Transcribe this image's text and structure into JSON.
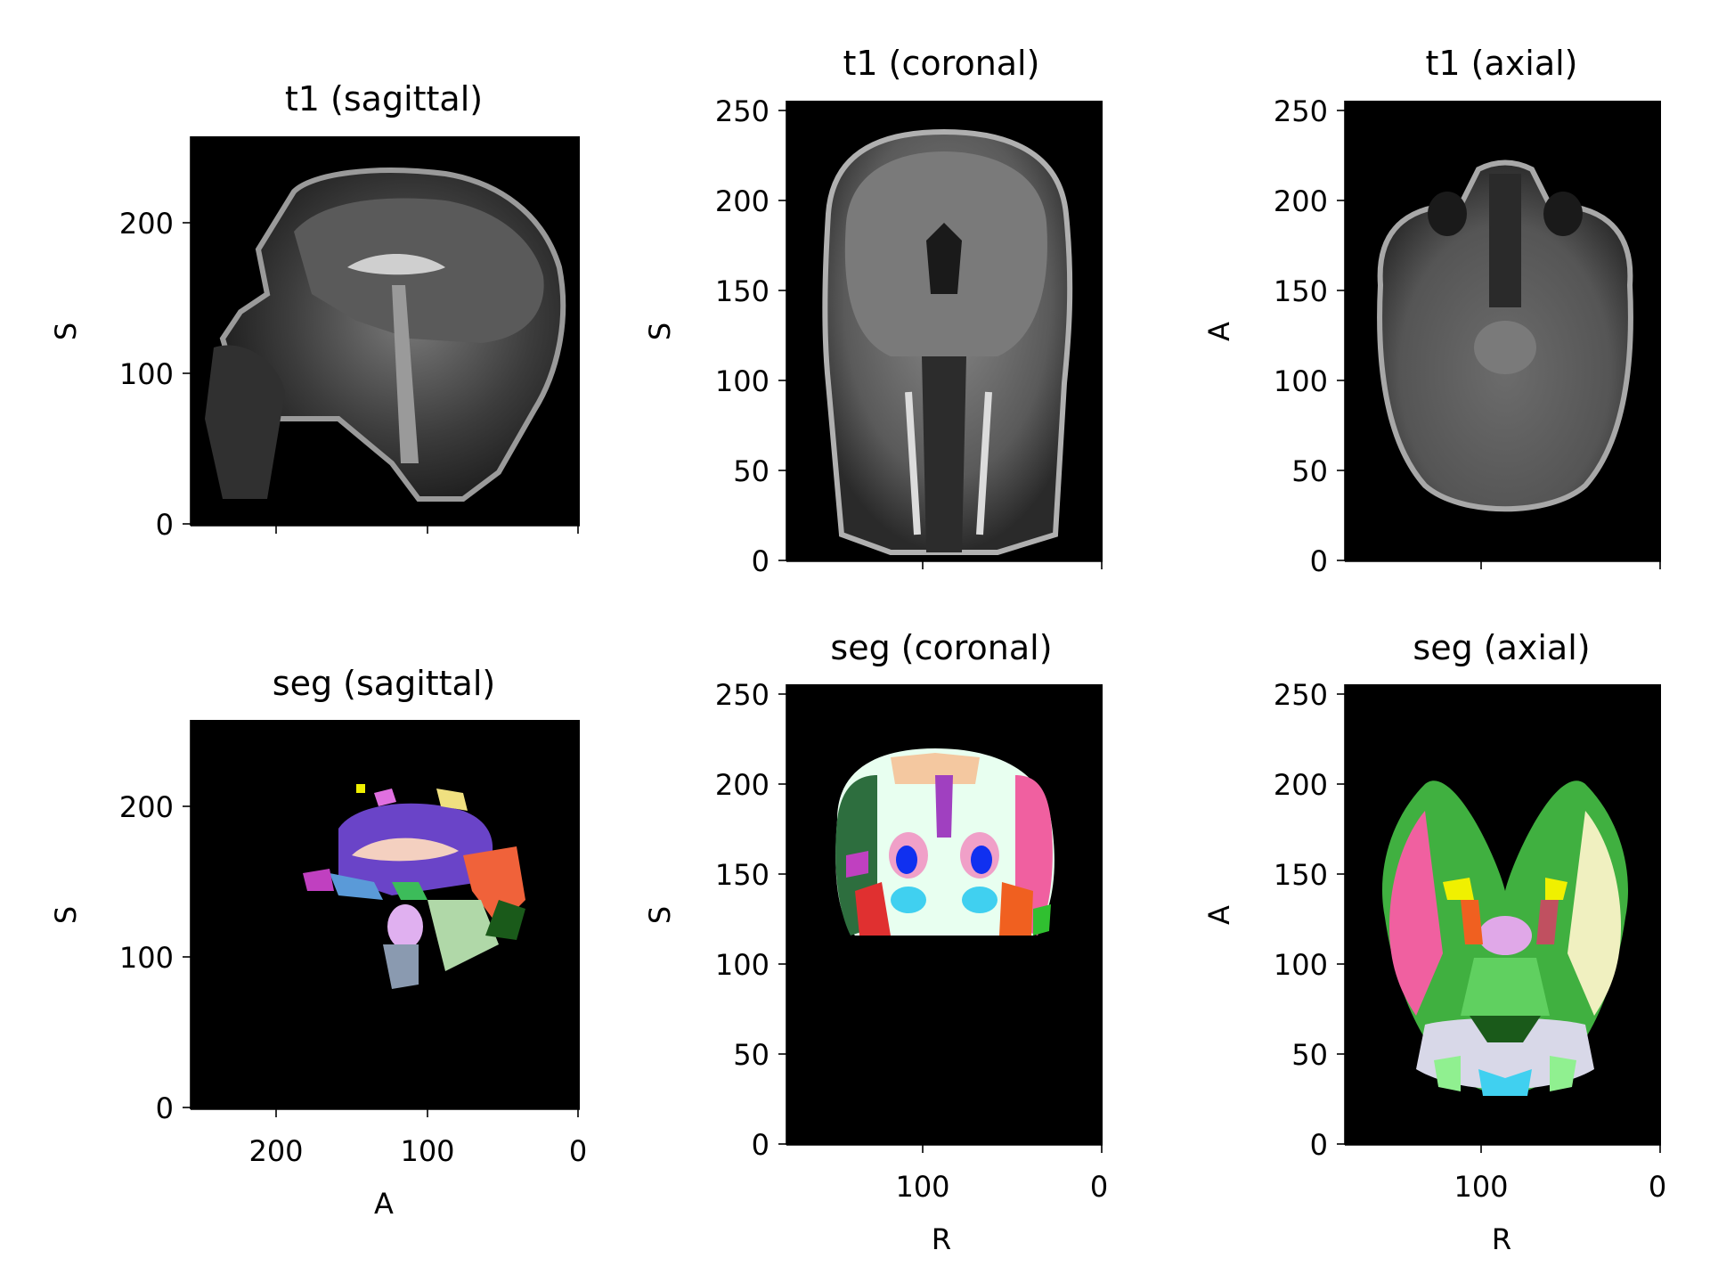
{
  "chart_data": [
    {
      "type": "image",
      "title": "t1 (sagittal)",
      "xlabel": "",
      "ylabel": "S",
      "xlim": [
        256,
        0
      ],
      "ylim": [
        0,
        256
      ],
      "xticks": [
        200,
        100,
        0
      ],
      "xticklabels": [
        "",
        "",
        ""
      ],
      "yticks": [
        0,
        100,
        200
      ],
      "yticklabels": [
        "0",
        "100",
        "200"
      ],
      "image": "grayscale MRI sagittal slice of head and brain"
    },
    {
      "type": "image",
      "title": "t1 (coronal)",
      "xlabel": "",
      "ylabel": "S",
      "xlim": [
        176,
        0
      ],
      "ylim": [
        0,
        256
      ],
      "xticks": [
        100,
        0
      ],
      "xticklabels": [
        "",
        ""
      ],
      "yticks": [
        0,
        50,
        100,
        150,
        200,
        250
      ],
      "yticklabels": [
        "0",
        "50",
        "100",
        "150",
        "200",
        "250"
      ],
      "image": "grayscale MRI coronal slice of head and brain"
    },
    {
      "type": "image",
      "title": "t1 (axial)",
      "xlabel": "",
      "ylabel": "A",
      "xlim": [
        176,
        0
      ],
      "ylim": [
        0,
        256
      ],
      "xticks": [
        100,
        0
      ],
      "xticklabels": [
        "",
        ""
      ],
      "yticks": [
        0,
        50,
        100,
        150,
        200,
        250
      ],
      "yticklabels": [
        "0",
        "50",
        "100",
        "150",
        "200",
        "250"
      ],
      "image": "grayscale MRI axial slice of head and brain"
    },
    {
      "type": "image",
      "title": "seg (sagittal)",
      "xlabel": "A",
      "ylabel": "S",
      "xlim": [
        256,
        0
      ],
      "ylim": [
        0,
        256
      ],
      "xticks": [
        200,
        100,
        0
      ],
      "xticklabels": [
        "200",
        "100",
        "0"
      ],
      "yticks": [
        0,
        100,
        200
      ],
      "yticklabels": [
        "0",
        "100",
        "200"
      ],
      "image": "colored brain segmentation label map, sagittal"
    },
    {
      "type": "image",
      "title": "seg (coronal)",
      "xlabel": "R",
      "ylabel": "S",
      "xlim": [
        176,
        0
      ],
      "ylim": [
        0,
        256
      ],
      "xticks": [
        100,
        0
      ],
      "xticklabels": [
        "100",
        "0"
      ],
      "yticks": [
        0,
        50,
        100,
        150,
        200,
        250
      ],
      "yticklabels": [
        "0",
        "50",
        "100",
        "150",
        "200",
        "250"
      ],
      "image": "colored brain segmentation label map, coronal"
    },
    {
      "type": "image",
      "title": "seg (axial)",
      "xlabel": "R",
      "ylabel": "A",
      "xlim": [
        176,
        0
      ],
      "ylim": [
        0,
        256
      ],
      "xticks": [
        100,
        0
      ],
      "xticklabels": [
        "100",
        "0"
      ],
      "yticks": [
        0,
        50,
        100,
        150,
        200,
        250
      ],
      "yticklabels": [
        "0",
        "50",
        "100",
        "150",
        "200",
        "250"
      ],
      "image": "colored brain segmentation label map, axial"
    }
  ]
}
